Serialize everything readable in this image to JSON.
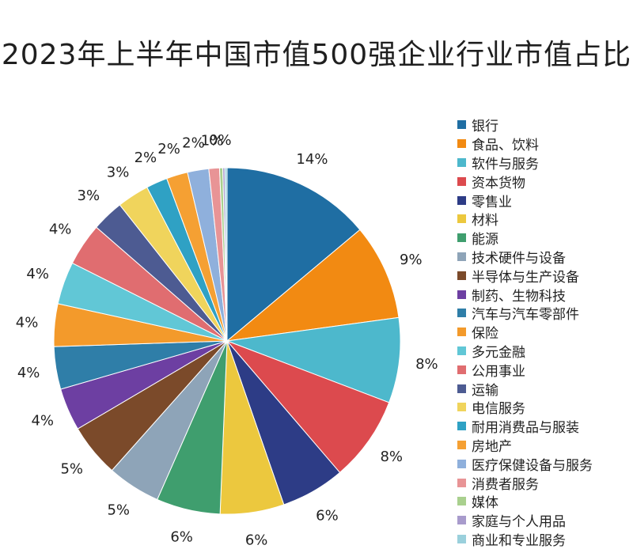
{
  "chart_data": {
    "type": "pie",
    "title": "2023年上半年中国市值500强企业行业市值占比",
    "slices": [
      {
        "label": "银行",
        "value": 14,
        "value_label": "14%",
        "color": "#1f6ea3"
      },
      {
        "label": "食品、饮料",
        "value": 9,
        "value_label": "9%",
        "color": "#f28a12"
      },
      {
        "label": "软件与服务",
        "value": 8,
        "value_label": "8%",
        "color": "#4db8cc"
      },
      {
        "label": "资本货物",
        "value": 8,
        "value_label": "8%",
        "color": "#dc4a4e"
      },
      {
        "label": "零售业",
        "value": 6,
        "value_label": "6%",
        "color": "#2d3c86"
      },
      {
        "label": "材料",
        "value": 6,
        "value_label": "6%",
        "color": "#ecc83e"
      },
      {
        "label": "能源",
        "value": 6,
        "value_label": "6%",
        "color": "#3f9e6e"
      },
      {
        "label": "技术硬件与设备",
        "value": 5,
        "value_label": "5%",
        "color": "#8ea4b8"
      },
      {
        "label": "半导体与生产设备",
        "value": 5,
        "value_label": "5%",
        "color": "#7b4a2a"
      },
      {
        "label": "制药、生物科技",
        "value": 4,
        "value_label": "4%",
        "color": "#6d3fa2"
      },
      {
        "label": "汽车与汽车零部件",
        "value": 4,
        "value_label": "4%",
        "color": "#2f7ea8"
      },
      {
        "label": "保险",
        "value": 4,
        "value_label": "4%",
        "color": "#f39a2b"
      },
      {
        "label": "多元金融",
        "value": 4,
        "value_label": "4%",
        "color": "#61c7d6"
      },
      {
        "label": "公用事业",
        "value": 4,
        "value_label": "4%",
        "color": "#e06d70"
      },
      {
        "label": "运输",
        "value": 3,
        "value_label": "3%",
        "color": "#4d5b92"
      },
      {
        "label": "电信服务",
        "value": 3,
        "value_label": "3%",
        "color": "#f0d45c"
      },
      {
        "label": "耐用消费品与服装",
        "value": 2,
        "value_label": "2%",
        "color": "#2fa1c4"
      },
      {
        "label": "房地产",
        "value": 2,
        "value_label": "2%",
        "color": "#f5a033"
      },
      {
        "label": "医疗保健设备与服务",
        "value": 2,
        "value_label": "2%",
        "color": "#8fb0dc"
      },
      {
        "label": "消费者服务",
        "value": 1,
        "value_label": "1%",
        "color": "#e89496"
      },
      {
        "label": "媒体",
        "value": 0.3,
        "value_label": "0%",
        "color": "#a9d08e"
      },
      {
        "label": "家庭与个人用品",
        "value": 0.2,
        "value_label": "",
        "color": "#a89bcc"
      },
      {
        "label": "商业和专业服务",
        "value": 0.2,
        "value_label": "",
        "color": "#9ad0dc"
      }
    ]
  }
}
